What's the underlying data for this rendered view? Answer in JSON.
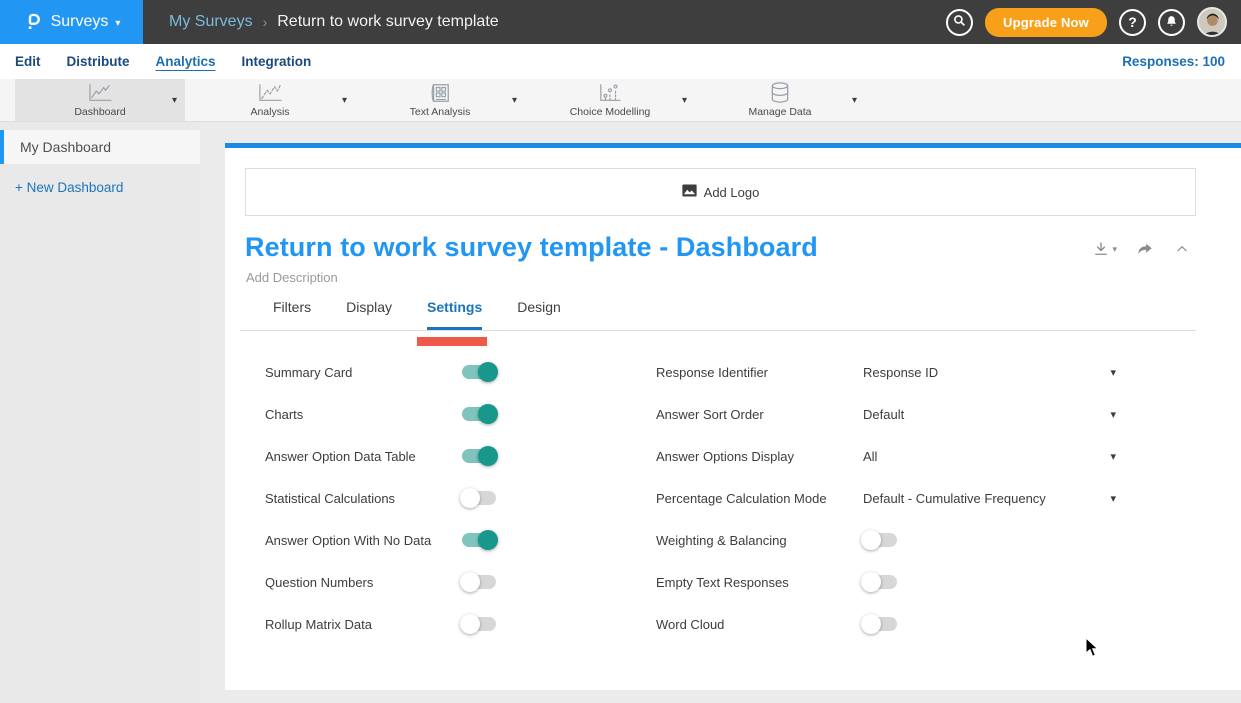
{
  "header": {
    "logo": "P",
    "product": "Surveys",
    "breadcrumb": {
      "parent": "My Surveys",
      "separator": "›",
      "current": "Return to work survey template"
    },
    "upgrade": "Upgrade Now",
    "help": "?"
  },
  "nav": {
    "items": [
      {
        "label": "Edit",
        "active": false
      },
      {
        "label": "Distribute",
        "active": false
      },
      {
        "label": "Analytics",
        "active": true
      },
      {
        "label": "Integration",
        "active": false
      }
    ],
    "responses": "Responses: 100"
  },
  "toolbar": {
    "items": [
      {
        "label": "Dashboard",
        "icon": "dashboard-line-chart-icon",
        "active": true
      },
      {
        "label": "Analysis",
        "icon": "analysis-line-chart-icon",
        "active": false
      },
      {
        "label": "Text Analysis",
        "icon": "text-analysis-document-icon",
        "active": false
      },
      {
        "label": "Choice Modelling",
        "icon": "choice-modelling-scatter-icon",
        "active": false
      },
      {
        "label": "Manage Data",
        "icon": "database-icon",
        "active": false
      }
    ]
  },
  "sidebar": {
    "active_item": "My Dashboard",
    "new_dashboard": "+ New Dashboard"
  },
  "main": {
    "add_logo": "Add Logo",
    "title": "Return to work survey template - Dashboard",
    "description": "Add Description",
    "tabs": [
      {
        "label": "Filters",
        "active": false
      },
      {
        "label": "Display",
        "active": false
      },
      {
        "label": "Settings",
        "active": true
      },
      {
        "label": "Design",
        "active": false
      }
    ],
    "settings": {
      "left": [
        {
          "label": "Summary Card",
          "control": "toggle",
          "on": true
        },
        {
          "label": "Charts",
          "control": "toggle",
          "on": true
        },
        {
          "label": "Answer Option Data Table",
          "control": "toggle",
          "on": true
        },
        {
          "label": "Statistical Calculations",
          "control": "toggle",
          "on": false
        },
        {
          "label": "Answer Option With No Data",
          "control": "toggle",
          "on": true
        },
        {
          "label": "Question Numbers",
          "control": "toggle",
          "on": false
        },
        {
          "label": "Rollup Matrix Data",
          "control": "toggle",
          "on": false
        }
      ],
      "right": [
        {
          "label": "Response Identifier",
          "control": "select",
          "value": "Response ID"
        },
        {
          "label": "Answer Sort Order",
          "control": "select",
          "value": "Default"
        },
        {
          "label": "Answer Options Display",
          "control": "select",
          "value": "All"
        },
        {
          "label": "Percentage Calculation Mode",
          "control": "select",
          "value": "Default - Cumulative Frequency"
        },
        {
          "label": "Weighting & Balancing",
          "control": "toggle",
          "on": false
        },
        {
          "label": "Empty Text Responses",
          "control": "toggle",
          "on": false
        },
        {
          "label": "Word Cloud",
          "control": "toggle",
          "on": false
        }
      ]
    }
  },
  "colors": {
    "brand_blue": "#2196f3",
    "header_bg": "#3e3e3e",
    "upgrade_orange": "#f9a01b",
    "tab_active_blue": "#1b75bb",
    "annotation_red": "#ee4b38",
    "toggle_on_knob": "#17988a",
    "toggle_on_track": "#7fc5be",
    "responses_blue": "#1b6fb5"
  }
}
